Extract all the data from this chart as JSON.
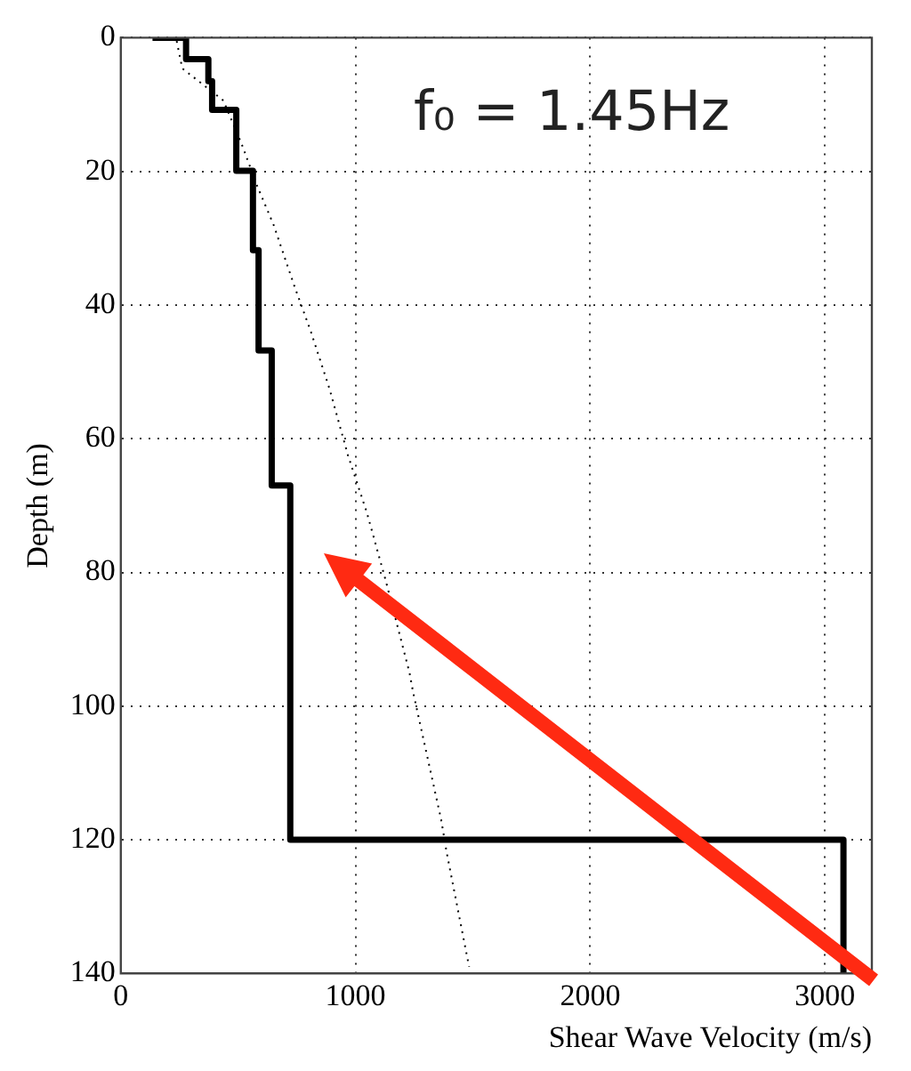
{
  "chart_data": {
    "type": "line",
    "xlabel": "Shear Wave Velocity (m/s)",
    "ylabel": "Depth (m)",
    "annotations": [
      "f₀ = 1.45Hz"
    ],
    "xlim": [
      0,
      3200
    ],
    "xticks": [
      0,
      1000,
      2000,
      3000
    ],
    "ylim": [
      140,
      0
    ],
    "yticks": [
      0,
      20,
      40,
      60,
      80,
      100,
      120,
      140
    ],
    "grid": true,
    "marker": "none",
    "series": [
      {
        "color": "#000000",
        "line_style": "solid",
        "x": [
          135,
          278,
          278,
          373,
          373,
          389,
          389,
          492,
          492,
          563,
          563,
          587,
          587,
          643,
          643,
          722,
          722,
          3079,
          3079
        ],
        "values": [
          0,
          0,
          3.2,
          3.2,
          6.5,
          6.5,
          10.8,
          10.8,
          19.9,
          19.9,
          31.8,
          31.8,
          46.8,
          46.8,
          67,
          67,
          120,
          120,
          140
        ]
      },
      {
        "color": "#000000",
        "line_style": "dotted",
        "x": [
          238,
          262,
          437,
          516,
          579,
          651,
          738,
          810,
          889,
          968,
          1048,
          1127,
          1230,
          1246,
          1365,
          1389,
          1484
        ],
        "values": [
          0.5,
          4.6,
          9.4,
          16,
          22,
          28,
          37,
          44,
          52.5,
          62.5,
          71,
          81,
          95,
          98,
          117,
          122,
          139
        ]
      }
    ]
  }
}
